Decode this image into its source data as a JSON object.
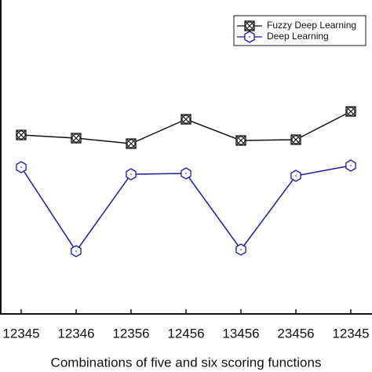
{
  "chart_data": {
    "type": "line",
    "x_label": "Combinations of five and six scoring functions",
    "categories": [
      "12345",
      "12346",
      "12356",
      "12456",
      "13456",
      "23456",
      "12345"
    ],
    "series": [
      {
        "name": "Fuzzy Deep Learning",
        "color": "#111111",
        "marker": "crossed-square",
        "values": [
          228,
          224,
          217,
          248,
          221,
          222,
          258
        ]
      },
      {
        "name": "Deep Learning",
        "color": "#1a1aaa",
        "marker": "hexagon",
        "values": [
          187,
          80,
          178,
          179,
          82,
          176,
          189
        ]
      }
    ],
    "ylim": [
      0,
      400
    ],
    "legend": "upper right"
  }
}
